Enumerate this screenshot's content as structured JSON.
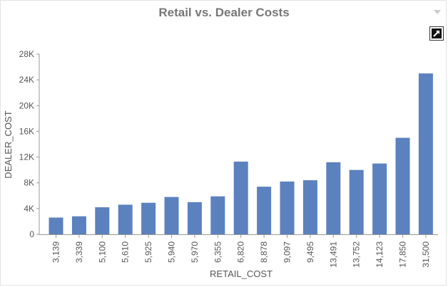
{
  "chart_data": {
    "type": "bar",
    "title": "Retail vs. Dealer Costs",
    "xlabel": "RETAIL_COST",
    "ylabel": "DEALER_COST",
    "categories": [
      "3,139",
      "3,339",
      "5,100",
      "5,610",
      "5,925",
      "5,940",
      "5,970",
      "6,355",
      "6,820",
      "8,878",
      "9,097",
      "9,495",
      "13,491",
      "13,752",
      "14,123",
      "17,850",
      "31,500"
    ],
    "values": [
      2600,
      2800,
      4200,
      4600,
      4900,
      5800,
      5000,
      5900,
      11300,
      7400,
      8200,
      8400,
      11200,
      10000,
      11000,
      15000,
      25000
    ],
    "ylim": [
      0,
      28000
    ],
    "yticks": [
      0,
      4000,
      8000,
      12000,
      16000,
      20000,
      24000,
      28000
    ],
    "ytick_labels": [
      "0",
      "4K",
      "8K",
      "12K",
      "16K",
      "20K",
      "24K",
      "28K"
    ],
    "grid": false,
    "bar_color": "#5b81be"
  }
}
